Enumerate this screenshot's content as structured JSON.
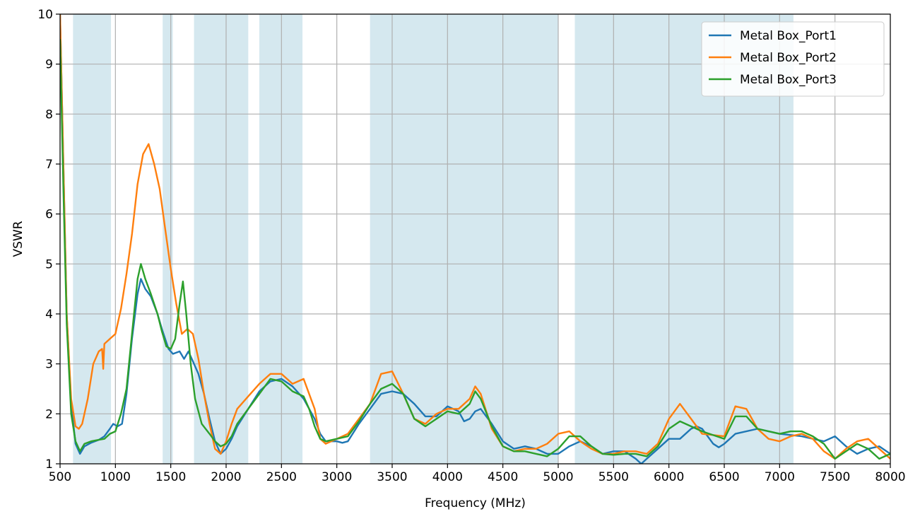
{
  "chart_data": {
    "type": "line",
    "title": "",
    "xlabel": "Frequency (MHz)",
    "ylabel": "VSWR",
    "xlim": [
      500,
      8000
    ],
    "ylim": [
      1,
      10
    ],
    "x_ticks": [
      "500",
      "1000",
      "1500",
      "2000",
      "2500",
      "3000",
      "3500",
      "4000",
      "4500",
      "5000",
      "5500",
      "6000",
      "6500",
      "7000",
      "7500",
      "8000"
    ],
    "y_ticks": [
      "1",
      "2",
      "3",
      "4",
      "5",
      "6",
      "7",
      "8",
      "9",
      "10"
    ],
    "grid": true,
    "legend_position": "top-right",
    "shaded_bands": [
      [
        617,
        960
      ],
      [
        1427,
        1518
      ],
      [
        1710,
        2200
      ],
      [
        2300,
        2690
      ],
      [
        3300,
        5000
      ],
      [
        5150,
        7125
      ]
    ],
    "shade_color": "#d5e8ef",
    "series": [
      {
        "name": "Metal Box_Port1",
        "color": "#1f77b4",
        "points": [
          [
            500,
            10
          ],
          [
            530,
            7
          ],
          [
            560,
            4
          ],
          [
            600,
            2.2
          ],
          [
            640,
            1.4
          ],
          [
            680,
            1.2
          ],
          [
            720,
            1.35
          ],
          [
            780,
            1.42
          ],
          [
            850,
            1.48
          ],
          [
            900,
            1.55
          ],
          [
            950,
            1.7
          ],
          [
            980,
            1.8
          ],
          [
            1020,
            1.75
          ],
          [
            1060,
            1.8
          ],
          [
            1100,
            2.4
          ],
          [
            1150,
            3.5
          ],
          [
            1200,
            4.4
          ],
          [
            1230,
            4.7
          ],
          [
            1270,
            4.5
          ],
          [
            1320,
            4.35
          ],
          [
            1380,
            4.0
          ],
          [
            1420,
            3.7
          ],
          [
            1480,
            3.3
          ],
          [
            1520,
            3.2
          ],
          [
            1580,
            3.25
          ],
          [
            1620,
            3.1
          ],
          [
            1660,
            3.25
          ],
          [
            1700,
            3.05
          ],
          [
            1750,
            2.8
          ],
          [
            1800,
            2.4
          ],
          [
            1850,
            1.9
          ],
          [
            1900,
            1.45
          ],
          [
            1950,
            1.2
          ],
          [
            2000,
            1.3
          ],
          [
            2050,
            1.5
          ],
          [
            2100,
            1.75
          ],
          [
            2200,
            2.1
          ],
          [
            2300,
            2.45
          ],
          [
            2400,
            2.65
          ],
          [
            2500,
            2.7
          ],
          [
            2600,
            2.55
          ],
          [
            2700,
            2.3
          ],
          [
            2800,
            1.9
          ],
          [
            2850,
            1.6
          ],
          [
            2900,
            1.45
          ],
          [
            3000,
            1.45
          ],
          [
            3050,
            1.42
          ],
          [
            3100,
            1.45
          ],
          [
            3200,
            1.8
          ],
          [
            3300,
            2.1
          ],
          [
            3400,
            2.4
          ],
          [
            3500,
            2.45
          ],
          [
            3600,
            2.4
          ],
          [
            3700,
            2.2
          ],
          [
            3800,
            1.95
          ],
          [
            3900,
            1.95
          ],
          [
            4000,
            2.15
          ],
          [
            4100,
            2.05
          ],
          [
            4150,
            1.85
          ],
          [
            4200,
            1.9
          ],
          [
            4250,
            2.05
          ],
          [
            4300,
            2.1
          ],
          [
            4400,
            1.8
          ],
          [
            4500,
            1.45
          ],
          [
            4600,
            1.3
          ],
          [
            4700,
            1.35
          ],
          [
            4800,
            1.3
          ],
          [
            4900,
            1.2
          ],
          [
            5000,
            1.2
          ],
          [
            5100,
            1.35
          ],
          [
            5200,
            1.45
          ],
          [
            5300,
            1.35
          ],
          [
            5400,
            1.2
          ],
          [
            5500,
            1.25
          ],
          [
            5600,
            1.25
          ],
          [
            5700,
            1.1
          ],
          [
            5750,
            1.0
          ],
          [
            5800,
            1.1
          ],
          [
            5900,
            1.3
          ],
          [
            6000,
            1.5
          ],
          [
            6100,
            1.5
          ],
          [
            6200,
            1.7
          ],
          [
            6250,
            1.75
          ],
          [
            6300,
            1.7
          ],
          [
            6400,
            1.4
          ],
          [
            6450,
            1.33
          ],
          [
            6500,
            1.4
          ],
          [
            6600,
            1.6
          ],
          [
            6800,
            1.7
          ],
          [
            7000,
            1.6
          ],
          [
            7200,
            1.55
          ],
          [
            7400,
            1.45
          ],
          [
            7500,
            1.55
          ],
          [
            7600,
            1.35
          ],
          [
            7700,
            1.2
          ],
          [
            7800,
            1.3
          ],
          [
            7900,
            1.35
          ],
          [
            8000,
            1.2
          ]
        ]
      },
      {
        "name": "Metal Box_Port2",
        "color": "#ff7f0e",
        "points": [
          [
            500,
            10
          ],
          [
            530,
            7
          ],
          [
            560,
            4
          ],
          [
            600,
            2.3
          ],
          [
            640,
            1.75
          ],
          [
            670,
            1.7
          ],
          [
            700,
            1.8
          ],
          [
            750,
            2.3
          ],
          [
            800,
            3.0
          ],
          [
            850,
            3.25
          ],
          [
            880,
            3.3
          ],
          [
            890,
            2.9
          ],
          [
            900,
            3.4
          ],
          [
            950,
            3.5
          ],
          [
            1000,
            3.6
          ],
          [
            1050,
            4.1
          ],
          [
            1100,
            4.8
          ],
          [
            1150,
            5.6
          ],
          [
            1200,
            6.6
          ],
          [
            1250,
            7.2
          ],
          [
            1300,
            7.4
          ],
          [
            1350,
            7.0
          ],
          [
            1400,
            6.5
          ],
          [
            1450,
            5.7
          ],
          [
            1500,
            4.9
          ],
          [
            1550,
            4.2
          ],
          [
            1600,
            3.6
          ],
          [
            1650,
            3.7
          ],
          [
            1700,
            3.6
          ],
          [
            1750,
            3.1
          ],
          [
            1800,
            2.4
          ],
          [
            1850,
            1.8
          ],
          [
            1900,
            1.3
          ],
          [
            1950,
            1.2
          ],
          [
            2000,
            1.45
          ],
          [
            2050,
            1.8
          ],
          [
            2100,
            2.1
          ],
          [
            2200,
            2.35
          ],
          [
            2300,
            2.6
          ],
          [
            2400,
            2.8
          ],
          [
            2500,
            2.8
          ],
          [
            2600,
            2.6
          ],
          [
            2700,
            2.7
          ],
          [
            2800,
            2.1
          ],
          [
            2850,
            1.5
          ],
          [
            2900,
            1.4
          ],
          [
            3000,
            1.5
          ],
          [
            3100,
            1.6
          ],
          [
            3200,
            1.9
          ],
          [
            3300,
            2.2
          ],
          [
            3400,
            2.8
          ],
          [
            3500,
            2.85
          ],
          [
            3600,
            2.4
          ],
          [
            3700,
            1.9
          ],
          [
            3800,
            1.8
          ],
          [
            3900,
            2.0
          ],
          [
            4000,
            2.1
          ],
          [
            4100,
            2.1
          ],
          [
            4200,
            2.3
          ],
          [
            4250,
            2.55
          ],
          [
            4300,
            2.4
          ],
          [
            4400,
            1.7
          ],
          [
            4500,
            1.35
          ],
          [
            4600,
            1.25
          ],
          [
            4700,
            1.3
          ],
          [
            4800,
            1.3
          ],
          [
            4900,
            1.4
          ],
          [
            5000,
            1.6
          ],
          [
            5100,
            1.65
          ],
          [
            5200,
            1.45
          ],
          [
            5300,
            1.3
          ],
          [
            5400,
            1.2
          ],
          [
            5500,
            1.2
          ],
          [
            5600,
            1.25
          ],
          [
            5700,
            1.25
          ],
          [
            5800,
            1.2
          ],
          [
            5900,
            1.4
          ],
          [
            6000,
            1.9
          ],
          [
            6100,
            2.2
          ],
          [
            6200,
            1.9
          ],
          [
            6300,
            1.6
          ],
          [
            6500,
            1.55
          ],
          [
            6600,
            2.15
          ],
          [
            6700,
            2.1
          ],
          [
            6800,
            1.7
          ],
          [
            6900,
            1.5
          ],
          [
            7000,
            1.45
          ],
          [
            7100,
            1.55
          ],
          [
            7200,
            1.6
          ],
          [
            7300,
            1.5
          ],
          [
            7400,
            1.25
          ],
          [
            7500,
            1.1
          ],
          [
            7600,
            1.3
          ],
          [
            7700,
            1.45
          ],
          [
            7800,
            1.5
          ],
          [
            7900,
            1.3
          ],
          [
            8000,
            1.1
          ]
        ]
      },
      {
        "name": "Metal Box_Port3",
        "color": "#2ca02c",
        "points": [
          [
            500,
            9.5
          ],
          [
            530,
            6.5
          ],
          [
            560,
            3.8
          ],
          [
            600,
            2.0
          ],
          [
            640,
            1.45
          ],
          [
            680,
            1.25
          ],
          [
            720,
            1.4
          ],
          [
            780,
            1.45
          ],
          [
            850,
            1.48
          ],
          [
            900,
            1.5
          ],
          [
            950,
            1.6
          ],
          [
            1000,
            1.65
          ],
          [
            1050,
            2.0
          ],
          [
            1100,
            2.5
          ],
          [
            1150,
            3.6
          ],
          [
            1200,
            4.7
          ],
          [
            1230,
            5.0
          ],
          [
            1270,
            4.7
          ],
          [
            1320,
            4.4
          ],
          [
            1380,
            4.0
          ],
          [
            1420,
            3.65
          ],
          [
            1460,
            3.35
          ],
          [
            1500,
            3.3
          ],
          [
            1540,
            3.5
          ],
          [
            1580,
            4.2
          ],
          [
            1610,
            4.65
          ],
          [
            1640,
            4.0
          ],
          [
            1680,
            3.0
          ],
          [
            1720,
            2.3
          ],
          [
            1780,
            1.8
          ],
          [
            1850,
            1.6
          ],
          [
            1900,
            1.45
          ],
          [
            1950,
            1.35
          ],
          [
            2000,
            1.4
          ],
          [
            2050,
            1.55
          ],
          [
            2100,
            1.8
          ],
          [
            2200,
            2.1
          ],
          [
            2300,
            2.4
          ],
          [
            2400,
            2.7
          ],
          [
            2500,
            2.65
          ],
          [
            2600,
            2.45
          ],
          [
            2700,
            2.35
          ],
          [
            2750,
            2.1
          ],
          [
            2800,
            1.75
          ],
          [
            2850,
            1.5
          ],
          [
            2900,
            1.45
          ],
          [
            3000,
            1.5
          ],
          [
            3100,
            1.55
          ],
          [
            3200,
            1.85
          ],
          [
            3300,
            2.2
          ],
          [
            3400,
            2.5
          ],
          [
            3500,
            2.6
          ],
          [
            3600,
            2.4
          ],
          [
            3700,
            1.9
          ],
          [
            3800,
            1.75
          ],
          [
            3900,
            1.9
          ],
          [
            4000,
            2.05
          ],
          [
            4100,
            2.0
          ],
          [
            4200,
            2.2
          ],
          [
            4250,
            2.45
          ],
          [
            4300,
            2.3
          ],
          [
            4400,
            1.75
          ],
          [
            4500,
            1.35
          ],
          [
            4600,
            1.25
          ],
          [
            4700,
            1.25
          ],
          [
            4800,
            1.2
          ],
          [
            4900,
            1.15
          ],
          [
            5000,
            1.3
          ],
          [
            5100,
            1.55
          ],
          [
            5200,
            1.55
          ],
          [
            5300,
            1.35
          ],
          [
            5400,
            1.2
          ],
          [
            5500,
            1.18
          ],
          [
            5600,
            1.2
          ],
          [
            5700,
            1.2
          ],
          [
            5800,
            1.15
          ],
          [
            5900,
            1.35
          ],
          [
            6000,
            1.7
          ],
          [
            6100,
            1.85
          ],
          [
            6200,
            1.75
          ],
          [
            6300,
            1.65
          ],
          [
            6500,
            1.5
          ],
          [
            6600,
            1.95
          ],
          [
            6700,
            1.95
          ],
          [
            6800,
            1.7
          ],
          [
            7000,
            1.6
          ],
          [
            7100,
            1.65
          ],
          [
            7200,
            1.65
          ],
          [
            7300,
            1.55
          ],
          [
            7400,
            1.4
          ],
          [
            7500,
            1.1
          ],
          [
            7600,
            1.25
          ],
          [
            7700,
            1.4
          ],
          [
            7800,
            1.3
          ],
          [
            7900,
            1.1
          ],
          [
            8000,
            1.2
          ]
        ]
      }
    ]
  }
}
